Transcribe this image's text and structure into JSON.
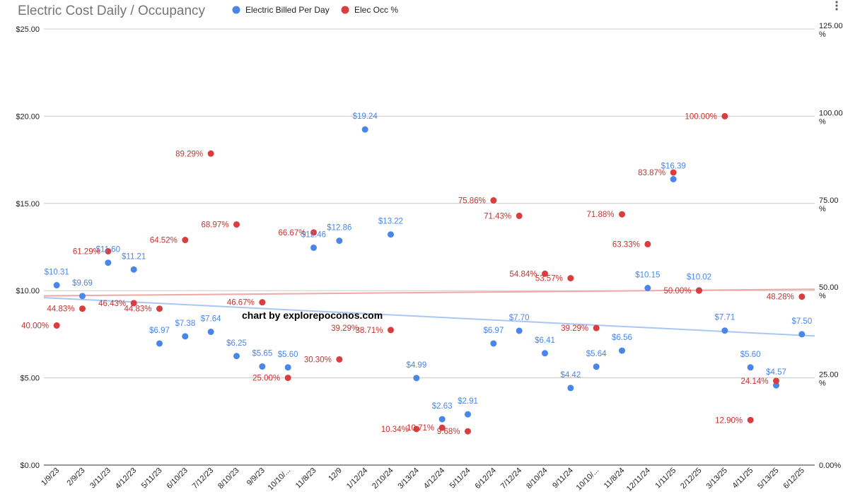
{
  "chart_data": {
    "type": "scatter",
    "title": "Electric Cost Daily / Occupancy",
    "watermark": "chart by explorepoconos.com",
    "legend_position": "top",
    "grid": true,
    "categories": [
      "1/9/23",
      "2/9/23",
      "3/11/23",
      "4/12/23",
      "5/11/23",
      "6/10/23",
      "7/12/23",
      "8/10/23",
      "9/9/23",
      "10/10/...",
      "11/8/23",
      "12/9",
      "1/12/24",
      "2/10/24",
      "3/13/24",
      "4/12/24",
      "5/11/24",
      "6/12/24",
      "7/12/24",
      "8/10/24",
      "9/11/24",
      "10/10/...",
      "11/8/24",
      "12/11/24",
      "1/11/25",
      "2/12/25",
      "3/13/25",
      "4/11/25",
      "5/13/25",
      "6/12/25"
    ],
    "left_axis": {
      "ylim": [
        0,
        25
      ],
      "ticks": [
        "$0.00",
        "$5.00",
        "$10.00",
        "$15.00",
        "$20.00",
        "$25.00"
      ]
    },
    "right_axis": {
      "ylim": [
        0,
        125
      ],
      "ticks": [
        "0.00%",
        "25.00 %",
        "50.00 %",
        "75.00 %",
        "100.00 %",
        "125.00 %"
      ]
    },
    "series": [
      {
        "name": "Electric Billed Per Day",
        "axis": "left",
        "color": "#4a86e8",
        "label_color": "#4a86e8",
        "trendline_color": "#aac6f5",
        "trendline": [
          9.6,
          7.4
        ],
        "points": [
          {
            "i": 0,
            "v": 10.31,
            "label": "$10.31"
          },
          {
            "i": 1,
            "v": 9.69,
            "label": "$9.69"
          },
          {
            "i": 2,
            "v": 11.6,
            "label": "$11.60"
          },
          {
            "i": 3,
            "v": 11.21,
            "label": "$11.21"
          },
          {
            "i": 4,
            "v": 6.97,
            "label": "$6.97"
          },
          {
            "i": 5,
            "v": 7.38,
            "label": "$7.38"
          },
          {
            "i": 6,
            "v": 7.64,
            "label": "$7.64"
          },
          {
            "i": 7,
            "v": 6.25,
            "label": "$6.25"
          },
          {
            "i": 8,
            "v": 5.65,
            "label": "$5.65"
          },
          {
            "i": 9,
            "v": 5.6,
            "label": "$5.60"
          },
          {
            "i": 10,
            "v": 12.46,
            "label": "$12.46"
          },
          {
            "i": 11,
            "v": 12.86,
            "label": "$12.86"
          },
          {
            "i": 12,
            "v": 19.24,
            "label": "$19.24"
          },
          {
            "i": 13,
            "v": 13.22,
            "label": "$13.22"
          },
          {
            "i": 14,
            "v": 4.99,
            "label": "$4.99"
          },
          {
            "i": 15,
            "v": 2.63,
            "label": "$2.63"
          },
          {
            "i": 16,
            "v": 2.91,
            "label": "$2.91"
          },
          {
            "i": 17,
            "v": 6.97,
            "label": "$6.97"
          },
          {
            "i": 18,
            "v": 7.7,
            "label": "$7.70"
          },
          {
            "i": 19,
            "v": 6.41,
            "label": "$6.41"
          },
          {
            "i": 20,
            "v": 4.42,
            "label": "$4.42"
          },
          {
            "i": 21,
            "v": 5.64,
            "label": "$5.64"
          },
          {
            "i": 22,
            "v": 6.56,
            "label": "$6.56"
          },
          {
            "i": 23,
            "v": 10.15,
            "label": "$10.15"
          },
          {
            "i": 24,
            "v": 16.39,
            "label": "$16.39"
          },
          {
            "i": 25,
            "v": 10.02,
            "label": "$10.02"
          },
          {
            "i": 26,
            "v": 7.71,
            "label": "$7.71"
          },
          {
            "i": 27,
            "v": 5.6,
            "label": "$5.60"
          },
          {
            "i": 28,
            "v": 4.57,
            "label": "$4.57"
          },
          {
            "i": 29,
            "v": 7.5,
            "label": "$7.50"
          }
        ]
      },
      {
        "name": "Elec Occ %",
        "axis": "right",
        "color": "#d93d3d",
        "label_color": "#c5332f",
        "trendline_color": "#f2a7a7",
        "trendline": [
          48.5,
          50.4
        ],
        "points": [
          {
            "i": 0,
            "v": 40.0,
            "label": "40.00%"
          },
          {
            "i": 1,
            "v": 44.83,
            "label": "44.83%"
          },
          {
            "i": 2,
            "v": 61.29,
            "label": "61.29%"
          },
          {
            "i": 3,
            "v": 46.43,
            "label": "46.43%"
          },
          {
            "i": 4,
            "v": 44.83,
            "label": "44.83%"
          },
          {
            "i": 5,
            "v": 64.52,
            "label": "64.52%"
          },
          {
            "i": 6,
            "v": 89.29,
            "label": "89.29%"
          },
          {
            "i": 7,
            "v": 68.97,
            "label": "68.97%"
          },
          {
            "i": 8,
            "v": 46.67,
            "label": "46.67%"
          },
          {
            "i": 9,
            "v": 25.0,
            "label": "25.00%"
          },
          {
            "i": 10,
            "v": 66.67,
            "label": "66.67%"
          },
          {
            "i": 11,
            "v": 30.3,
            "label": "30.30%"
          },
          {
            "i": 13,
            "v": 38.71,
            "label": "38.71%"
          },
          {
            "i": 14,
            "v": 10.34,
            "label": "10.34%"
          },
          {
            "i": 15,
            "v": 10.71,
            "label": "10.71%"
          },
          {
            "i": 16,
            "v": 9.68,
            "label": "9.68%"
          },
          {
            "i": 17,
            "v": 75.86,
            "label": "75.86%"
          },
          {
            "i": 18,
            "v": 71.43,
            "label": "71.43%"
          },
          {
            "i": 19,
            "v": 54.84,
            "label": "54.84%"
          },
          {
            "i": 20,
            "v": 53.57,
            "label": "53.57%"
          },
          {
            "i": 21,
            "v": 39.29,
            "label": "39.29%"
          },
          {
            "i": 22,
            "v": 71.88,
            "label": "71.88%"
          },
          {
            "i": 23,
            "v": 63.33,
            "label": "63.33%"
          },
          {
            "i": 24,
            "v": 83.87,
            "label": "83.87%"
          },
          {
            "i": 25,
            "v": 50.0,
            "label": "50.00%"
          },
          {
            "i": 26,
            "v": 100.0,
            "label": "100.00%"
          },
          {
            "i": 27,
            "v": 12.9,
            "label": "12.90%"
          },
          {
            "i": 28,
            "v": 24.14,
            "label": "24.14%"
          },
          {
            "i": 29,
            "v": 48.28,
            "label": "48.28%"
          }
        ],
        "extra_labels": [
          {
            "i": 12,
            "v": 39.29,
            "label": "39.29%"
          }
        ]
      }
    ]
  }
}
